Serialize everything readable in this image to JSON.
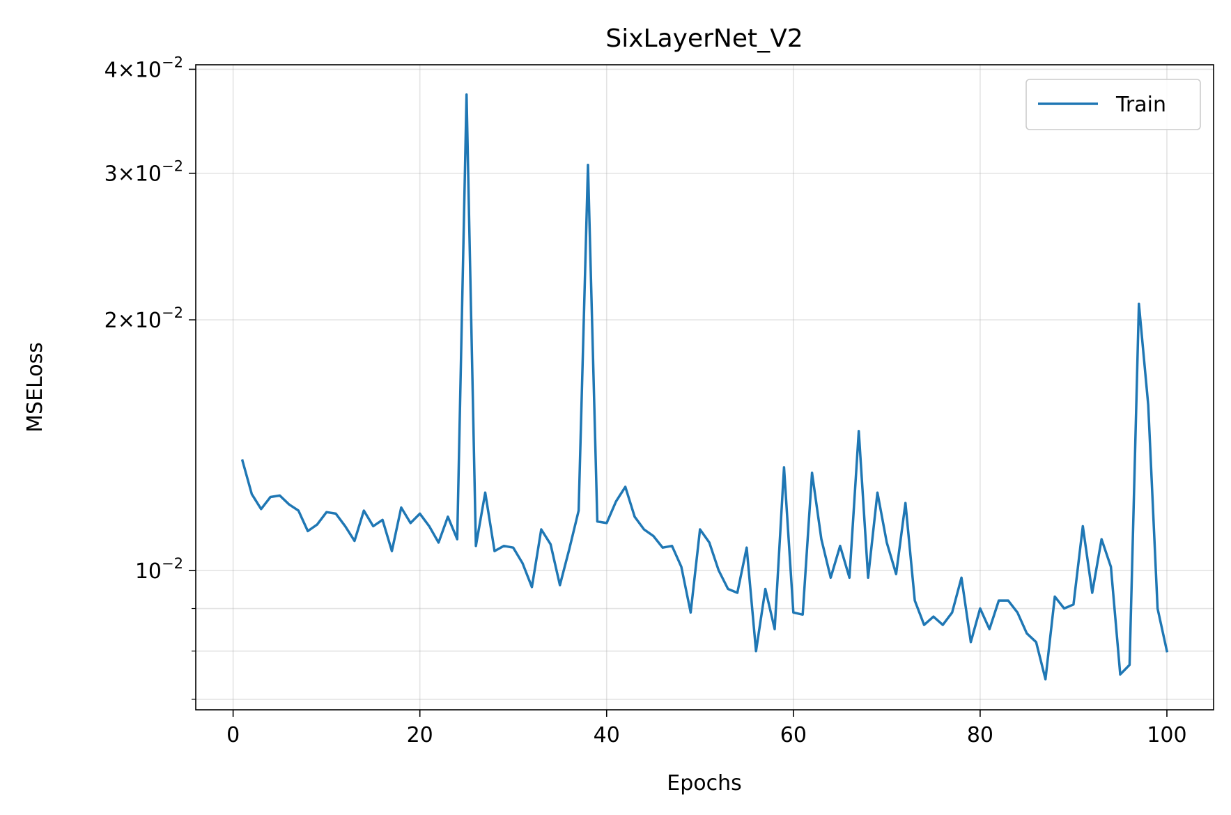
{
  "chart_data": {
    "type": "line",
    "title": "SixLayerNet_V2",
    "xlabel": "Epochs",
    "ylabel": "MSELoss",
    "xlim": [
      -4,
      105
    ],
    "ylim": [
      0.0068,
      0.0405
    ],
    "yscale": "log",
    "grid": true,
    "legend_position": "upper right",
    "xticks": [
      0,
      20,
      40,
      60,
      80,
      100
    ],
    "xtick_labels": [
      "0",
      "20",
      "40",
      "60",
      "80",
      "100"
    ],
    "yticks_major": [
      {
        "value": 0.01,
        "mantissa": "",
        "base": "10",
        "exp": "−2"
      },
      {
        "value": 0.02,
        "mantissa": "2",
        "base": "10",
        "exp": "−2"
      },
      {
        "value": 0.03,
        "mantissa": "3",
        "base": "10",
        "exp": "−2"
      },
      {
        "value": 0.04,
        "mantissa": "4",
        "base": "10",
        "exp": "−2"
      }
    ],
    "yticks_minor": [
      0.007,
      0.008,
      0.009
    ],
    "series": [
      {
        "name": "Train",
        "color": "#1f77b4",
        "x": [
          1,
          2,
          3,
          4,
          5,
          6,
          7,
          8,
          9,
          10,
          11,
          12,
          13,
          14,
          15,
          16,
          17,
          18,
          19,
          20,
          21,
          22,
          23,
          24,
          25,
          26,
          27,
          28,
          29,
          30,
          31,
          32,
          33,
          34,
          35,
          36,
          37,
          38,
          39,
          40,
          41,
          42,
          43,
          44,
          45,
          46,
          47,
          48,
          49,
          50,
          51,
          52,
          53,
          54,
          55,
          56,
          57,
          58,
          59,
          60,
          61,
          62,
          63,
          64,
          65,
          66,
          67,
          68,
          69,
          70,
          71,
          72,
          73,
          74,
          75,
          76,
          77,
          78,
          79,
          80,
          81,
          82,
          83,
          84,
          85,
          86,
          87,
          88,
          89,
          90,
          91,
          92,
          93,
          94,
          95,
          96,
          97,
          98,
          99,
          100
        ],
        "values": [
          0.01355,
          0.01235,
          0.01185,
          0.01225,
          0.0123,
          0.012,
          0.0118,
          0.01115,
          0.01135,
          0.01175,
          0.0117,
          0.0113,
          0.01085,
          0.0118,
          0.0113,
          0.0115,
          0.01055,
          0.0119,
          0.0114,
          0.0117,
          0.0113,
          0.0108,
          0.0116,
          0.0109,
          0.0373,
          0.0107,
          0.0124,
          0.01055,
          0.0107,
          0.01065,
          0.0102,
          0.00955,
          0.0112,
          0.01075,
          0.0096,
          0.0106,
          0.0118,
          0.0307,
          0.01145,
          0.0114,
          0.0121,
          0.0126,
          0.0116,
          0.0112,
          0.011,
          0.01065,
          0.0107,
          0.0101,
          0.0089,
          0.0112,
          0.0108,
          0.01,
          0.0095,
          0.0094,
          0.01065,
          0.008,
          0.0095,
          0.0085,
          0.0133,
          0.0089,
          0.00885,
          0.0131,
          0.0109,
          0.0098,
          0.0107,
          0.0098,
          0.0147,
          0.0098,
          0.0124,
          0.0108,
          0.0099,
          0.01205,
          0.0092,
          0.0086,
          0.0088,
          0.0086,
          0.0089,
          0.0098,
          0.0082,
          0.009,
          0.0085,
          0.0092,
          0.0092,
          0.0089,
          0.0084,
          0.0082,
          0.0074,
          0.0093,
          0.009,
          0.0091,
          0.0113,
          0.0094,
          0.0109,
          0.0101,
          0.0075,
          0.0077,
          0.0209,
          0.0158,
          0.009,
          0.008
        ]
      }
    ]
  }
}
